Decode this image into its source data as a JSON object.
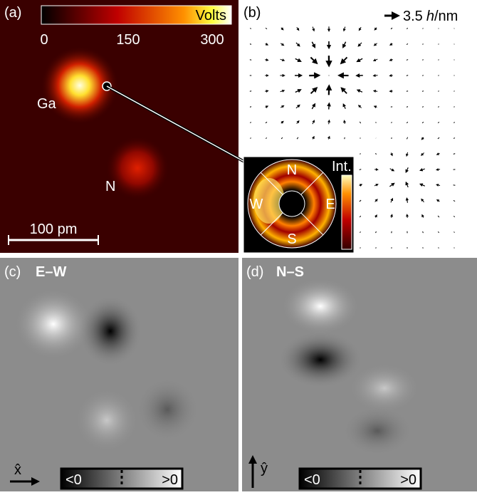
{
  "panels": [
    {
      "label": "(a)",
      "colorbar": {
        "title": "Volts",
        "ticks": [
          0,
          150,
          300
        ]
      },
      "atoms": [
        "Ga",
        "N"
      ],
      "scale_bar": "100 pm",
      "inset": {
        "directions": [
          "N",
          "E",
          "S",
          "W"
        ],
        "colorbar_title": "Int."
      }
    },
    {
      "label": "(b)",
      "scale": {
        "number": 3.5,
        "symbol": "h",
        "unit": "/nm"
      }
    },
    {
      "label": "(c)",
      "title": "E–W",
      "axis": "x̂",
      "colorbar": {
        "low": "<0",
        "high": ">0"
      }
    },
    {
      "label": "(d)",
      "title": "N–S",
      "axis": "ŷ",
      "colorbar": {
        "low": "<0",
        "high": ">0"
      }
    }
  ]
}
